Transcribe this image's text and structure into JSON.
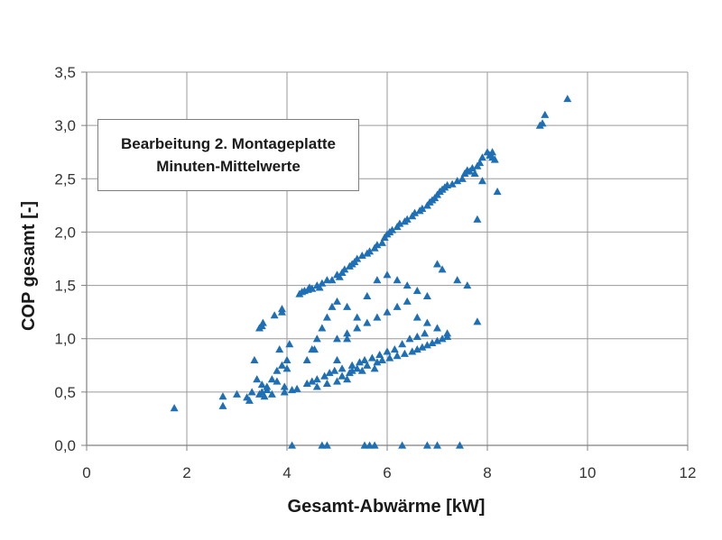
{
  "chart_data": {
    "type": "scatter",
    "title": "",
    "xlabel": "Gesamt-Abwärme [kW]",
    "ylabel": "COP gesamt [-]",
    "xlim": [
      0,
      12
    ],
    "ylim": [
      0,
      3.5
    ],
    "xticks": [
      0,
      2,
      4,
      6,
      8,
      10,
      12
    ],
    "xtick_labels": [
      "0",
      "2",
      "4",
      "6",
      "8",
      "10",
      "12"
    ],
    "yticks": [
      0,
      0.5,
      1.0,
      1.5,
      2.0,
      2.5,
      3.0,
      3.5
    ],
    "ytick_labels": [
      "0,0",
      "0,5",
      "1,0",
      "1,5",
      "2,0",
      "2,5",
      "3,0",
      "3,5"
    ],
    "grid": true,
    "annotation_lines": [
      "Bearbeitung 2. Montageplatte",
      "Minuten-Mittelwerte"
    ],
    "marker_color": "#1f6fb5",
    "marker": "triangle",
    "points": [
      [
        1.75,
        0.35
      ],
      [
        2.72,
        0.46
      ],
      [
        2.72,
        0.37
      ],
      [
        3.0,
        0.48
      ],
      [
        3.2,
        0.45
      ],
      [
        3.25,
        0.42
      ],
      [
        3.3,
        0.5
      ],
      [
        3.35,
        0.8
      ],
      [
        3.4,
        0.62
      ],
      [
        3.45,
        0.48
      ],
      [
        3.5,
        0.5
      ],
      [
        3.5,
        0.57
      ],
      [
        3.55,
        0.46
      ],
      [
        3.6,
        0.52
      ],
      [
        3.45,
        1.1
      ],
      [
        3.5,
        1.12
      ],
      [
        3.52,
        1.15
      ],
      [
        3.7,
        0.48
      ],
      [
        3.75,
        1.22
      ],
      [
        3.8,
        0.6
      ],
      [
        3.85,
        0.9
      ],
      [
        3.9,
        1.28
      ],
      [
        3.9,
        1.25
      ],
      [
        3.95,
        0.5
      ],
      [
        3.95,
        0.55
      ],
      [
        4.0,
        0.72
      ],
      [
        4.05,
        0.95
      ],
      [
        4.1,
        0.52
      ],
      [
        4.2,
        0.53
      ],
      [
        4.25,
        1.42
      ],
      [
        4.3,
        1.44
      ],
      [
        4.35,
        1.45
      ],
      [
        4.4,
        0.58
      ],
      [
        4.42,
        1.46
      ],
      [
        4.45,
        1.48
      ],
      [
        4.5,
        0.6
      ],
      [
        4.5,
        1.47
      ],
      [
        4.55,
        0.9
      ],
      [
        4.6,
        1.5
      ],
      [
        4.6,
        0.62
      ],
      [
        4.65,
        1.48
      ],
      [
        4.7,
        1.52
      ],
      [
        4.75,
        0.65
      ],
      [
        4.8,
        1.55
      ],
      [
        4.85,
        0.68
      ],
      [
        4.9,
        1.55
      ],
      [
        4.95,
        0.7
      ],
      [
        5.0,
        1.6
      ],
      [
        5.05,
        1.58
      ],
      [
        5.1,
        1.62
      ],
      [
        5.1,
        0.72
      ],
      [
        5.15,
        1.65
      ],
      [
        5.2,
        1.3
      ],
      [
        5.25,
        1.68
      ],
      [
        5.3,
        0.75
      ],
      [
        5.3,
        1.7
      ],
      [
        5.35,
        1.72
      ],
      [
        5.4,
        1.75
      ],
      [
        5.45,
        0.78
      ],
      [
        5.5,
        1.78
      ],
      [
        5.55,
        0.8
      ],
      [
        5.6,
        1.8
      ],
      [
        5.65,
        1.82
      ],
      [
        5.7,
        0.82
      ],
      [
        5.75,
        1.85
      ],
      [
        5.8,
        1.88
      ],
      [
        5.85,
        0.85
      ],
      [
        5.9,
        1.9
      ],
      [
        5.95,
        1.95
      ],
      [
        6.0,
        0.88
      ],
      [
        6.0,
        1.98
      ],
      [
        6.05,
        2.0
      ],
      [
        6.1,
        2.02
      ],
      [
        6.15,
        0.9
      ],
      [
        6.2,
        2.05
      ],
      [
        6.25,
        2.08
      ],
      [
        6.3,
        0.95
      ],
      [
        6.35,
        2.1
      ],
      [
        6.4,
        2.12
      ],
      [
        6.45,
        1.0
      ],
      [
        6.5,
        2.15
      ],
      [
        6.55,
        2.18
      ],
      [
        6.6,
        1.02
      ],
      [
        6.65,
        2.2
      ],
      [
        6.7,
        2.22
      ],
      [
        6.75,
        1.05
      ],
      [
        6.8,
        2.25
      ],
      [
        6.85,
        2.28
      ],
      [
        6.9,
        2.3
      ],
      [
        6.95,
        2.32
      ],
      [
        7.0,
        2.35
      ],
      [
        7.05,
        2.38
      ],
      [
        7.1,
        2.4
      ],
      [
        7.15,
        2.42
      ],
      [
        7.2,
        2.44
      ],
      [
        7.3,
        2.45
      ],
      [
        7.4,
        2.48
      ],
      [
        7.5,
        2.5
      ],
      [
        7.55,
        2.55
      ],
      [
        7.6,
        2.58
      ],
      [
        7.65,
        2.57
      ],
      [
        7.7,
        2.6
      ],
      [
        7.75,
        2.55
      ],
      [
        7.8,
        2.62
      ],
      [
        7.85,
        2.65
      ],
      [
        7.9,
        2.7
      ],
      [
        8.0,
        2.75
      ],
      [
        8.05,
        2.72
      ],
      [
        8.1,
        2.7
      ],
      [
        8.15,
        2.68
      ],
      [
        7.8,
        2.12
      ],
      [
        7.9,
        2.48
      ],
      [
        8.2,
        2.38
      ],
      [
        8.1,
        2.75
      ],
      [
        9.05,
        3.0
      ],
      [
        9.1,
        3.02
      ],
      [
        9.15,
        3.1
      ],
      [
        9.6,
        3.25
      ],
      [
        5.0,
        0.6
      ],
      [
        5.1,
        0.65
      ],
      [
        5.2,
        0.62
      ],
      [
        5.25,
        0.68
      ],
      [
        5.3,
        0.7
      ],
      [
        5.4,
        0.72
      ],
      [
        5.5,
        0.7
      ],
      [
        5.6,
        0.75
      ],
      [
        5.75,
        0.72
      ],
      [
        5.8,
        0.78
      ],
      [
        5.9,
        0.8
      ],
      [
        6.05,
        0.82
      ],
      [
        6.2,
        0.84
      ],
      [
        6.35,
        0.86
      ],
      [
        6.5,
        0.88
      ],
      [
        6.6,
        0.9
      ],
      [
        6.7,
        0.92
      ],
      [
        6.8,
        0.94
      ],
      [
        6.9,
        0.96
      ],
      [
        7.0,
        0.98
      ],
      [
        7.1,
        1.0
      ],
      [
        7.2,
        1.02
      ],
      [
        4.6,
        0.55
      ],
      [
        4.8,
        0.58
      ],
      [
        5.0,
        0.8
      ],
      [
        5.2,
        1.0
      ],
      [
        5.4,
        1.2
      ],
      [
        5.6,
        1.4
      ],
      [
        5.8,
        1.55
      ],
      [
        6.0,
        1.6
      ],
      [
        6.2,
        1.55
      ],
      [
        6.4,
        1.5
      ],
      [
        6.6,
        1.45
      ],
      [
        6.8,
        1.4
      ],
      [
        7.0,
        1.7
      ],
      [
        7.1,
        1.65
      ],
      [
        7.4,
        1.55
      ],
      [
        7.6,
        1.5
      ],
      [
        7.8,
        1.16
      ],
      [
        5.0,
        1.0
      ],
      [
        5.2,
        1.05
      ],
      [
        5.4,
        1.1
      ],
      [
        5.6,
        1.15
      ],
      [
        5.8,
        1.2
      ],
      [
        6.0,
        1.25
      ],
      [
        6.2,
        1.3
      ],
      [
        6.4,
        1.35
      ],
      [
        6.6,
        1.2
      ],
      [
        6.8,
        1.15
      ],
      [
        7.0,
        1.1
      ],
      [
        7.2,
        1.05
      ],
      [
        4.4,
        0.8
      ],
      [
        4.5,
        0.9
      ],
      [
        4.6,
        1.0
      ],
      [
        4.7,
        1.1
      ],
      [
        4.8,
        1.2
      ],
      [
        4.9,
        1.3
      ],
      [
        5.0,
        1.35
      ],
      [
        3.8,
        0.7
      ],
      [
        3.9,
        0.75
      ],
      [
        4.0,
        0.8
      ],
      [
        3.6,
        0.55
      ],
      [
        3.7,
        0.62
      ],
      [
        4.1,
        0.0
      ],
      [
        4.7,
        0.0
      ],
      [
        4.8,
        0.0
      ],
      [
        5.55,
        0.0
      ],
      [
        5.65,
        0.0
      ],
      [
        5.75,
        0.0
      ],
      [
        6.3,
        0.0
      ],
      [
        6.8,
        0.0
      ],
      [
        7.0,
        0.0
      ],
      [
        7.45,
        0.0
      ]
    ]
  }
}
